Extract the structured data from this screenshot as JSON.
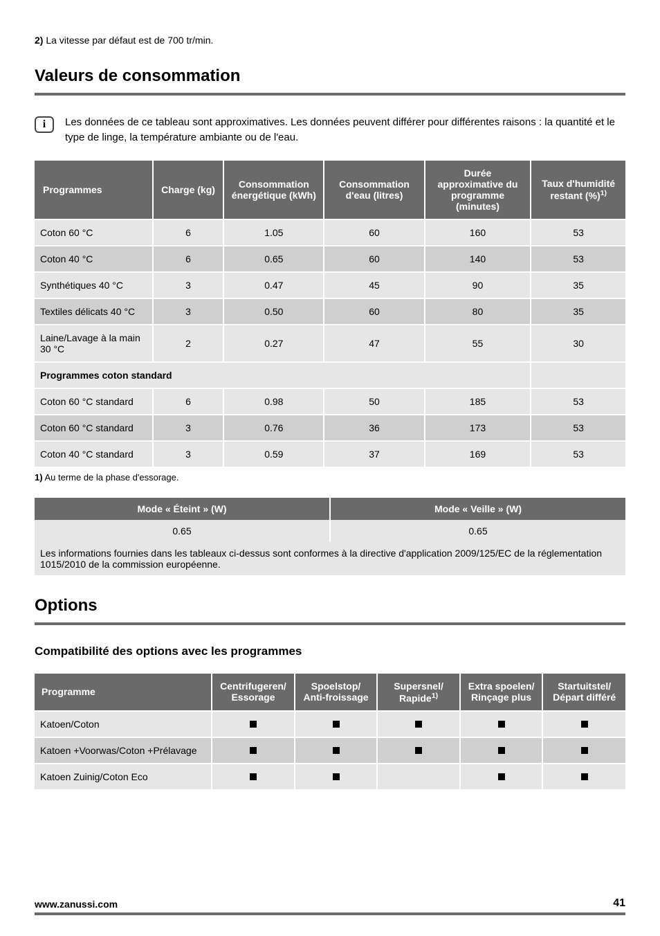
{
  "top_footnote": {
    "label": "2)",
    "text": "La vitesse par défaut est de 700 tr/min."
  },
  "section_valeurs": {
    "title": "Valeurs de consommation"
  },
  "info_note": "Les données de ce tableau sont approximatives. Les données peuvent différer pour différentes raisons : la quantité et le type de linge, la température ambiante ou de l'eau.",
  "consumption_table": {
    "headers": [
      "Programmes",
      "Charge (kg)",
      "Consommation énergétique (kWh)",
      "Consommation d'eau (litres)",
      "Durée approximative du programme (minutes)",
      "Taux d'humidité restant (%)"
    ],
    "header_sup": "1)",
    "rows_a": [
      [
        "Coton 60 °C",
        "6",
        "1.05",
        "60",
        "160",
        "53"
      ],
      [
        "Coton 40 °C",
        "6",
        "0.65",
        "60",
        "140",
        "53"
      ],
      [
        "Synthétiques 40 °C",
        "3",
        "0.47",
        "45",
        "90",
        "35"
      ],
      [
        "Textiles délicats 40 °C",
        "3",
        "0.50",
        "60",
        "80",
        "35"
      ],
      [
        "Laine/Lavage à la main 30 °C",
        "2",
        "0.27",
        "47",
        "55",
        "30"
      ]
    ],
    "section_label": "Programmes coton standard",
    "rows_b": [
      [
        "Coton 60 °C standard",
        "6",
        "0.98",
        "50",
        "185",
        "53"
      ],
      [
        "Coton 60 °C standard",
        "3",
        "0.76",
        "36",
        "173",
        "53"
      ],
      [
        "Coton 40 °C standard",
        "3",
        "0.59",
        "37",
        "169",
        "53"
      ]
    ],
    "col_widths": [
      "20%",
      "12%",
      "17%",
      "17%",
      "18%",
      "16%"
    ]
  },
  "footnote_1": {
    "label": "1)",
    "text": "Au terme de la phase d'essorage."
  },
  "mode_table": {
    "headers": [
      "Mode « Éteint » (W)",
      "Mode « Veille » (W)"
    ],
    "row": [
      "0.65",
      "0.65"
    ]
  },
  "mode_note": "Les informations fournies dans les tableaux ci-dessus sont conformes à la directive d'application 2009/125/EC de la réglementation 1015/2010 de la commission européenne.",
  "section_options": {
    "title": "Options"
  },
  "options_subheading": "Compatibilité des options avec les programmes",
  "options_table": {
    "headers": [
      "Programme",
      "Centrifugeren/ Essorage",
      "Spoelstop/ Anti-froissage",
      "Supersnel/ Rapide",
      "Extra spoelen/ Rinçage plus",
      "Startuitstel/ Départ différé"
    ],
    "header_sup_idx": 3,
    "header_sup": "1)",
    "rows": [
      {
        "name": "Katoen/Coton",
        "opts": [
          true,
          true,
          true,
          true,
          true
        ]
      },
      {
        "name": "Katoen +Voorwas/Coton +Prélavage",
        "opts": [
          true,
          true,
          true,
          true,
          true
        ]
      },
      {
        "name": "Katoen Zuinig/Coton Eco",
        "opts": [
          true,
          true,
          false,
          true,
          true
        ]
      }
    ],
    "col_widths": [
      "30%",
      "14%",
      "14%",
      "14%",
      "14%",
      "14%"
    ]
  },
  "footer": {
    "site": "www.zanussi.com",
    "page": "41"
  },
  "colors": {
    "header_bg": "#6a6a6a",
    "row_odd": "#e6e6e6",
    "row_even": "#cfcfcf",
    "text": "#000000",
    "rule": "#6a6a6a"
  }
}
